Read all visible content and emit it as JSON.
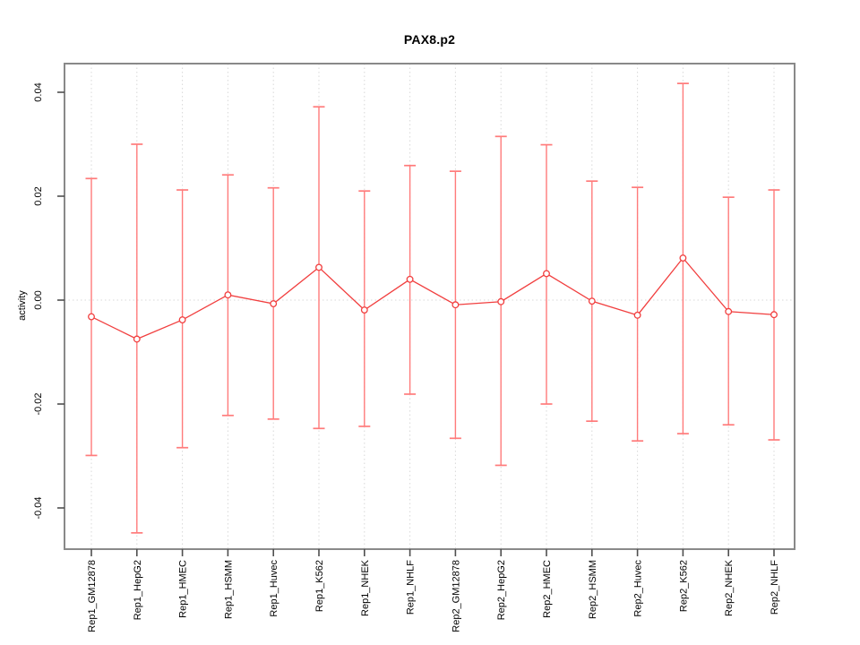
{
  "page": {
    "background": "#ffffff"
  },
  "chart_data": {
    "type": "line",
    "title": "PAX8.p2",
    "xlabel": "",
    "ylabel": "activity",
    "legend": "none",
    "marker": "open-circle",
    "error_bars": true,
    "categories": [
      "Rep1_GM12878",
      "Rep1_HepG2",
      "Rep1_HMEC",
      "Rep1_HSMM",
      "Rep1_Huvec",
      "Rep1_K562",
      "Rep1_NHEK",
      "Rep1_NHLF",
      "Rep2_GM12878",
      "Rep2_HepG2",
      "Rep2_HMEC",
      "Rep2_HSMM",
      "Rep2_Huvec",
      "Rep2_K562",
      "Rep2_NHEK",
      "Rep2_NHLF"
    ],
    "series": [
      {
        "name": "activity",
        "values": [
          -0.0032,
          -0.0075,
          -0.0038,
          0.001,
          -0.0007,
          0.0063,
          -0.0019,
          0.004,
          -0.0009,
          -0.0003,
          0.0051,
          -0.0002,
          -0.0029,
          0.0081,
          -0.0022,
          -0.0028
        ],
        "upper": [
          0.0234,
          0.03,
          0.0212,
          0.0241,
          0.0216,
          0.0372,
          0.021,
          0.0259,
          0.0248,
          0.0315,
          0.0299,
          0.0229,
          0.0217,
          0.0417,
          0.0198,
          0.0212
        ],
        "lower": [
          -0.0299,
          -0.0448,
          -0.0284,
          -0.0222,
          -0.0229,
          -0.0247,
          -0.0243,
          -0.0181,
          -0.0266,
          -0.0318,
          -0.02,
          -0.0233,
          -0.0271,
          -0.0257,
          -0.024,
          -0.0269
        ]
      }
    ],
    "ylim": [
      -0.0479,
      0.0455
    ],
    "yticks": [
      -0.04,
      -0.02,
      0,
      0.02,
      0.04
    ],
    "ytick_labels": [
      "-0.04",
      "-0.02",
      "0.00",
      "0.02",
      "0.04"
    ],
    "grid": {
      "vertical_dotted": true,
      "zero_line_dotted": true,
      "horizontal": false
    },
    "colors": {
      "series": "#f13f3f",
      "error_bar": "#ff7b7b",
      "grid": "#d8d8d8",
      "frame": "#898989",
      "tick": "#4f4f4f",
      "label": "#000000",
      "background": "#ffffff"
    }
  }
}
